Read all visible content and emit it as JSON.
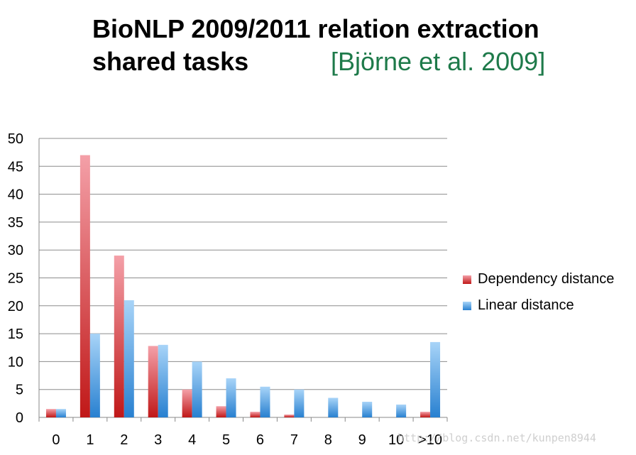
{
  "title": {
    "line1": "BioNLP 2009/2011 relation extraction",
    "line2": "shared tasks",
    "citation": "[Björne et al. 2009]"
  },
  "watermark": "http://blog.csdn.net/kunpen8944",
  "colors": {
    "citation": "#1e7a4a",
    "dependency_top": "#f4a0a8",
    "dependency_bottom": "#c01818",
    "linear_top": "#a8d4f8",
    "linear_bottom": "#2880d0",
    "gridline": "#888888"
  },
  "chart_data": {
    "type": "bar",
    "categories": [
      "0",
      "1",
      "2",
      "3",
      "4",
      "5",
      "6",
      "7",
      "8",
      "9",
      "10",
      ">10"
    ],
    "series": [
      {
        "name": "Dependency distance",
        "values": [
          1.5,
          47,
          29,
          12.8,
          5,
          2,
          1,
          0.5,
          0,
          0,
          0,
          1
        ]
      },
      {
        "name": "Linear distance",
        "values": [
          1.5,
          15,
          21,
          13,
          10,
          7,
          5.5,
          5,
          3.5,
          2.8,
          2.3,
          13.5
        ]
      }
    ],
    "ylim": [
      0,
      50
    ],
    "yticks": [
      0,
      5,
      10,
      15,
      20,
      25,
      30,
      35,
      40,
      45,
      50
    ],
    "grid": true,
    "legend_position": "right",
    "xlabel": "",
    "ylabel": ""
  }
}
